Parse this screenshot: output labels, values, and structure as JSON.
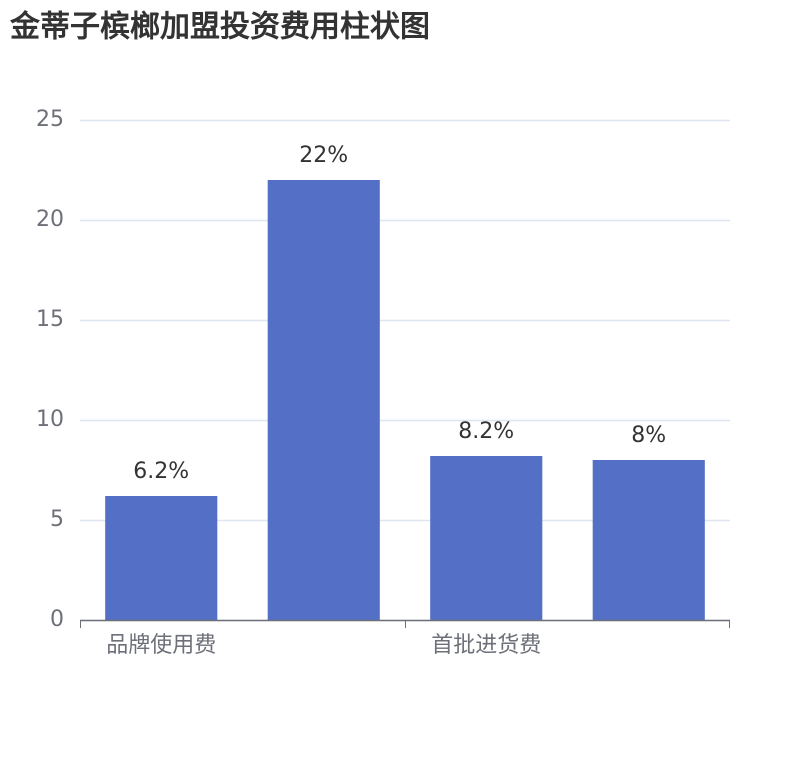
{
  "chart_data": {
    "type": "bar",
    "title": "金蒂子槟榔加盟投资费用柱状图",
    "categories": [
      "品牌使用费",
      null,
      "首批进货费",
      null
    ],
    "values": [
      6.2,
      22,
      8.2,
      8
    ],
    "value_labels": [
      "6.2%",
      "22%",
      "8.2%",
      "8%"
    ],
    "color": "#5470c6",
    "ylim": [
      0,
      25
    ],
    "yticks": [
      0,
      5,
      10,
      15,
      20,
      25
    ],
    "grid": true
  }
}
